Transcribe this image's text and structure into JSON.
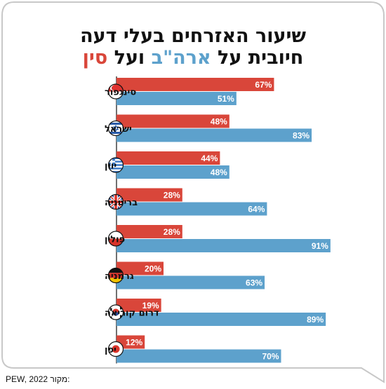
{
  "title": {
    "line1": "שיעור האזרחים בעלי דעה",
    "line2_prefix": "חיובית על",
    "line2_us": "ארה\"ב",
    "line2_and": "ועל",
    "line2_china": "סין"
  },
  "source": {
    "label": "מקור:",
    "value": "PEW, 2022"
  },
  "colors": {
    "china": "#d9463a",
    "usa": "#5da1cc",
    "axis": "#111111"
  },
  "chart_data": {
    "type": "bar",
    "orientation": "horizontal",
    "categories": [
      "סינגפור",
      "ישראל",
      "יוון",
      "בריטניה",
      "פולין",
      "גרמניה",
      "דרום קוריאה",
      "יפן"
    ],
    "flags": [
      "singapore-flag-icon",
      "israel-flag-icon",
      "greece-flag-icon",
      "uk-flag-icon",
      "poland-flag-icon",
      "germany-flag-icon",
      "south-korea-flag-icon",
      "japan-flag-icon"
    ],
    "series": [
      {
        "key": "china",
        "values": [
          67,
          48,
          44,
          28,
          28,
          20,
          19,
          12
        ],
        "labels": [
          "67%",
          "48%",
          "44%",
          "28%",
          "28%",
          "20%",
          "19%",
          "12%"
        ]
      },
      {
        "key": "usa",
        "values": [
          51,
          83,
          48,
          64,
          91,
          63,
          89,
          70
        ],
        "labels": [
          "51%",
          "83%",
          "48%",
          "64%",
          "91%",
          "63%",
          "89%",
          "70%"
        ]
      }
    ],
    "xlim": [
      0,
      100
    ],
    "title": "שיעור האזרחים בעלי דעה חיובית על ארה\"ב ועל סין"
  }
}
